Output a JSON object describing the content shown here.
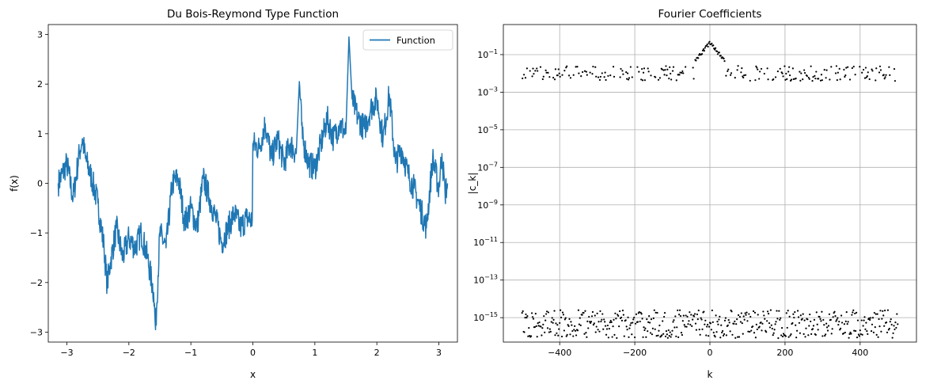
{
  "chart_data": [
    {
      "type": "line",
      "title": "Du Bois-Reymond Type Function",
      "xlabel": "x",
      "ylabel": "f(x)",
      "xlim": [
        -3.3,
        3.3
      ],
      "ylim": [
        -3.2,
        3.2
      ],
      "x_ticks": [
        -3,
        -2,
        -1,
        0,
        1,
        2,
        3
      ],
      "y_ticks": [
        -3,
        -2,
        -1,
        0,
        1,
        2,
        3
      ],
      "x_tick_labels": [
        "−3",
        "−2",
        "−1",
        "0",
        "1",
        "2",
        "3"
      ],
      "y_tick_labels": [
        "−3",
        "−2",
        "−1",
        "0",
        "1",
        "2",
        "3"
      ],
      "grid": false,
      "legend": {
        "position": "top-right",
        "entries": [
          "Function"
        ]
      },
      "series": [
        {
          "name": "Function",
          "color": "#1f77b4",
          "x": [
            -3.14,
            -3.0,
            -2.9,
            -2.8,
            -2.75,
            -2.7,
            -2.6,
            -2.5,
            -2.4,
            -2.35,
            -2.3,
            -2.2,
            -2.1,
            -2.0,
            -1.9,
            -1.8,
            -1.7,
            -1.6,
            -1.57,
            -1.5,
            -1.4,
            -1.3,
            -1.2,
            -1.1,
            -1.0,
            -0.9,
            -0.8,
            -0.7,
            -0.6,
            -0.5,
            -0.4,
            -0.3,
            -0.2,
            -0.1,
            -0.01,
            0.0,
            0.1,
            0.2,
            0.3,
            0.4,
            0.5,
            0.6,
            0.7,
            0.75,
            0.8,
            0.9,
            1.0,
            1.1,
            1.2,
            1.3,
            1.4,
            1.5,
            1.55,
            1.6,
            1.7,
            1.8,
            1.9,
            2.0,
            2.1,
            2.2,
            2.3,
            2.4,
            2.5,
            2.6,
            2.7,
            2.8,
            2.9,
            3.0,
            3.05,
            3.1,
            3.14
          ],
          "y": [
            0.0,
            0.4,
            -0.3,
            0.6,
            0.9,
            0.5,
            0.1,
            -0.4,
            -1.3,
            -2.05,
            -1.6,
            -0.9,
            -1.5,
            -1.1,
            -1.3,
            -1.0,
            -1.5,
            -2.2,
            -2.95,
            -1.0,
            -1.3,
            0.0,
            0.1,
            -0.8,
            -0.5,
            -0.9,
            0.1,
            -0.3,
            -0.7,
            -1.2,
            -0.9,
            -0.6,
            -0.9,
            -0.7,
            -0.75,
            0.8,
            0.7,
            1.2,
            0.5,
            0.9,
            0.4,
            0.8,
            0.6,
            2.05,
            0.9,
            0.4,
            0.3,
            0.8,
            1.3,
            0.9,
            1.2,
            1.0,
            2.95,
            1.7,
            1.3,
            1.1,
            1.5,
            1.7,
            0.9,
            1.8,
            0.4,
            0.7,
            0.2,
            -0.1,
            -0.5,
            -0.9,
            0.5,
            -0.1,
            0.6,
            -0.2,
            0.0
          ]
        }
      ]
    },
    {
      "type": "scatter",
      "title": "Fourier Coefficients",
      "xlabel": "k",
      "ylabel": "|c_k|",
      "xlim": [
        -550,
        550
      ],
      "ylim_log10": [
        -16.3,
        0.6
      ],
      "yscale": "log",
      "x_ticks": [
        -400,
        -200,
        0,
        200,
        400
      ],
      "x_tick_labels": [
        "−400",
        "−200",
        "0",
        "200",
        "400"
      ],
      "y_ticks_log10": [
        -1,
        -3,
        -5,
        -7,
        -9,
        -11,
        -13,
        -15
      ],
      "y_tick_base": "10",
      "y_tick_exponents": [
        "−1",
        "−3",
        "−5",
        "−7",
        "−9",
        "−11",
        "−13",
        "−15"
      ],
      "grid": true,
      "k_range": [
        -500,
        500
      ],
      "coefficient_bands": {
        "odd_k": "approximately 10^-3 to 10^-1 (peak ~0.5 near k=0)",
        "even_k": "approximately 10^-16 to 10^-14.5"
      },
      "marker_color": "#000000"
    }
  ]
}
